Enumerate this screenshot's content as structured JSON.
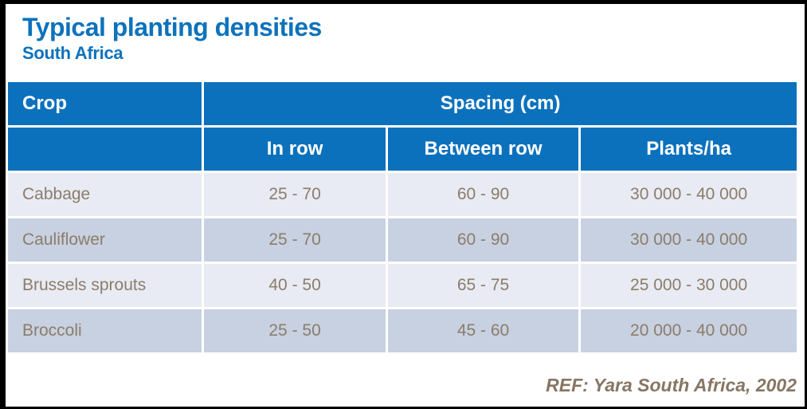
{
  "header": {
    "title": "Typical planting densities",
    "subtitle": "South Africa"
  },
  "table": {
    "corner": "Crop",
    "group_header": "Spacing (cm)",
    "sub_headers": {
      "in_row": "In row",
      "between_row": "Between row",
      "plants_ha": "Plants/ha"
    },
    "rows": [
      {
        "crop": "Cabbage",
        "in_row": "25 - 70",
        "between_row": "60 - 90",
        "plants_ha": "30 000 - 40 000"
      },
      {
        "crop": "Cauliflower",
        "in_row": "25 - 70",
        "between_row": "60 - 90",
        "plants_ha": "30 000 - 40 000"
      },
      {
        "crop": "Brussels sprouts",
        "in_row": "40 - 50",
        "between_row": "65 - 75",
        "plants_ha": "25 000 - 30 000"
      },
      {
        "crop": "Broccoli",
        "in_row": "25 - 50",
        "between_row": "45 - 60",
        "plants_ha": "20 000 - 40 000"
      }
    ]
  },
  "footer": {
    "reference": "REF: Yara South Africa, 2002"
  },
  "colors": {
    "title_blue": "#0d72bc",
    "header_blue": "#0c71bc",
    "row_light": "#e8ebf3",
    "row_dark": "#c7d1e1",
    "data_text": "#8c7c6a",
    "footer_text": "#877663",
    "header_text": "#ffffff",
    "frame_black": "#000000"
  },
  "chart_data": {
    "type": "table",
    "title": "Typical planting densities",
    "subtitle": "South Africa",
    "group_header": {
      "label": "Spacing (cm)",
      "spans": [
        "In row",
        "Between row",
        "Plants/ha"
      ]
    },
    "columns": [
      "Crop",
      "In row",
      "Between row",
      "Plants/ha"
    ],
    "rows": [
      [
        "Cabbage",
        "25 - 70",
        "60 - 90",
        "30 000 - 40 000"
      ],
      [
        "Cauliflower",
        "25 - 70",
        "60 - 90",
        "30 000 - 40 000"
      ],
      [
        "Brussels sprouts",
        "40 - 50",
        "65 - 75",
        "25 000 - 30 000"
      ],
      [
        "Broccoli",
        "25 - 50",
        "45 - 60",
        "20 000 - 40 000"
      ]
    ],
    "reference": "REF: Yara South Africa, 2002",
    "layout_hints": {
      "row_striping": [
        "light",
        "dark",
        "light",
        "dark"
      ],
      "header_style": "solid blue with white bold text",
      "reference_position": "bottom-right"
    }
  }
}
